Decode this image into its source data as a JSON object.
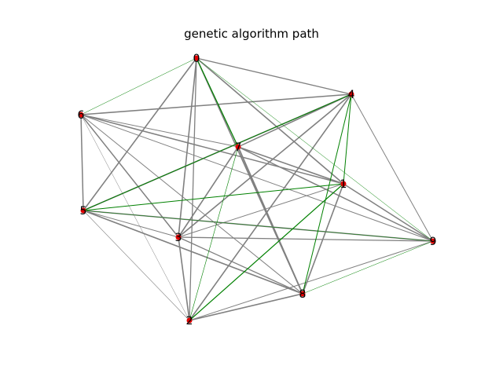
{
  "title": "genetic algorithm path",
  "colors": {
    "background": "#ffffff",
    "edge": "#808080",
    "path_edge": "#008000",
    "node": "#e00000",
    "label": "#000000"
  },
  "graph": {
    "nodes": [
      {
        "id": 0,
        "label": "0"
      },
      {
        "id": 1,
        "label": "1"
      },
      {
        "id": 2,
        "label": "2"
      },
      {
        "id": 3,
        "label": "3"
      },
      {
        "id": 4,
        "label": "4"
      },
      {
        "id": 5,
        "label": "5"
      },
      {
        "id": 6,
        "label": "6"
      },
      {
        "id": 7,
        "label": "7"
      },
      {
        "id": 8,
        "label": "8"
      },
      {
        "id": 9,
        "label": "9"
      }
    ],
    "edges": [
      {
        "from": 0,
        "to": 4,
        "kind": "gray",
        "weight": 1.3
      },
      {
        "from": 0,
        "to": 6,
        "kind": "green",
        "weight": 0.5
      },
      {
        "from": 0,
        "to": 7,
        "kind": "green",
        "weight": 1.2
      },
      {
        "from": 0,
        "to": 5,
        "kind": "gray",
        "weight": 1.6
      },
      {
        "from": 0,
        "to": 3,
        "kind": "gray",
        "weight": 1.6
      },
      {
        "from": 0,
        "to": 2,
        "kind": "gray",
        "weight": 1.3
      },
      {
        "from": 0,
        "to": 1,
        "kind": "gray",
        "weight": 1.6
      },
      {
        "from": 0,
        "to": 9,
        "kind": "green",
        "weight": 0.5
      },
      {
        "from": 0,
        "to": 8,
        "kind": "gray",
        "weight": 1.6
      },
      {
        "from": 6,
        "to": 4,
        "kind": "gray",
        "weight": 1.5
      },
      {
        "from": 6,
        "to": 5,
        "kind": "gray",
        "weight": 1.5
      },
      {
        "from": 6,
        "to": 7,
        "kind": "gray",
        "weight": 1.0
      },
      {
        "from": 6,
        "to": 1,
        "kind": "gray",
        "weight": 1.5
      },
      {
        "from": 6,
        "to": 9,
        "kind": "gray",
        "weight": 1.0
      },
      {
        "from": 6,
        "to": 3,
        "kind": "gray",
        "weight": 1.5
      },
      {
        "from": 6,
        "to": 8,
        "kind": "gray",
        "weight": 1.0
      },
      {
        "from": 6,
        "to": 2,
        "kind": "gray",
        "weight": 0.5
      },
      {
        "from": 4,
        "to": 7,
        "kind": "gray",
        "weight": 1.5
      },
      {
        "from": 4,
        "to": 5,
        "kind": "gray",
        "weight": 1.6
      },
      {
        "from": 4,
        "to": 3,
        "kind": "gray",
        "weight": 1.6
      },
      {
        "from": 4,
        "to": 1,
        "kind": "green",
        "weight": 1.0
      },
      {
        "from": 4,
        "to": 2,
        "kind": "gray",
        "weight": 1.6
      },
      {
        "from": 4,
        "to": 8,
        "kind": "green",
        "weight": 1.0
      },
      {
        "from": 4,
        "to": 9,
        "kind": "gray",
        "weight": 1.0
      },
      {
        "from": 4,
        "to": 5,
        "kind": "green",
        "weight": 1.0
      },
      {
        "from": 7,
        "to": 1,
        "kind": "gray",
        "weight": 1.6
      },
      {
        "from": 7,
        "to": 3,
        "kind": "gray",
        "weight": 1.6
      },
      {
        "from": 7,
        "to": 8,
        "kind": "gray",
        "weight": 1.8
      },
      {
        "from": 7,
        "to": 2,
        "kind": "green",
        "weight": 0.6
      },
      {
        "from": 7,
        "to": 9,
        "kind": "gray",
        "weight": 1.5
      },
      {
        "from": 5,
        "to": 1,
        "kind": "green",
        "weight": 1.0
      },
      {
        "from": 5,
        "to": 9,
        "kind": "gray",
        "weight": 1.5
      },
      {
        "from": 5,
        "to": 3,
        "kind": "gray",
        "weight": 1.0
      },
      {
        "from": 5,
        "to": 8,
        "kind": "gray",
        "weight": 1.6
      },
      {
        "from": 5,
        "to": 2,
        "kind": "gray",
        "weight": 0.6
      },
      {
        "from": 5,
        "to": 9,
        "kind": "green",
        "weight": 0.5
      },
      {
        "from": 1,
        "to": 3,
        "kind": "gray",
        "weight": 1.0
      },
      {
        "from": 1,
        "to": 2,
        "kind": "green",
        "weight": 1.2
      },
      {
        "from": 1,
        "to": 8,
        "kind": "gray",
        "weight": 1.6
      },
      {
        "from": 1,
        "to": 9,
        "kind": "gray",
        "weight": 1.5
      },
      {
        "from": 3,
        "to": 9,
        "kind": "gray",
        "weight": 1.3
      },
      {
        "from": 3,
        "to": 8,
        "kind": "gray",
        "weight": 1.3
      },
      {
        "from": 3,
        "to": 2,
        "kind": "gray",
        "weight": 1.6
      },
      {
        "from": 2,
        "to": 8,
        "kind": "gray",
        "weight": 1.6
      },
      {
        "from": 2,
        "to": 9,
        "kind": "gray",
        "weight": 1.0
      },
      {
        "from": 8,
        "to": 9,
        "kind": "green",
        "weight": 0.5
      }
    ]
  }
}
